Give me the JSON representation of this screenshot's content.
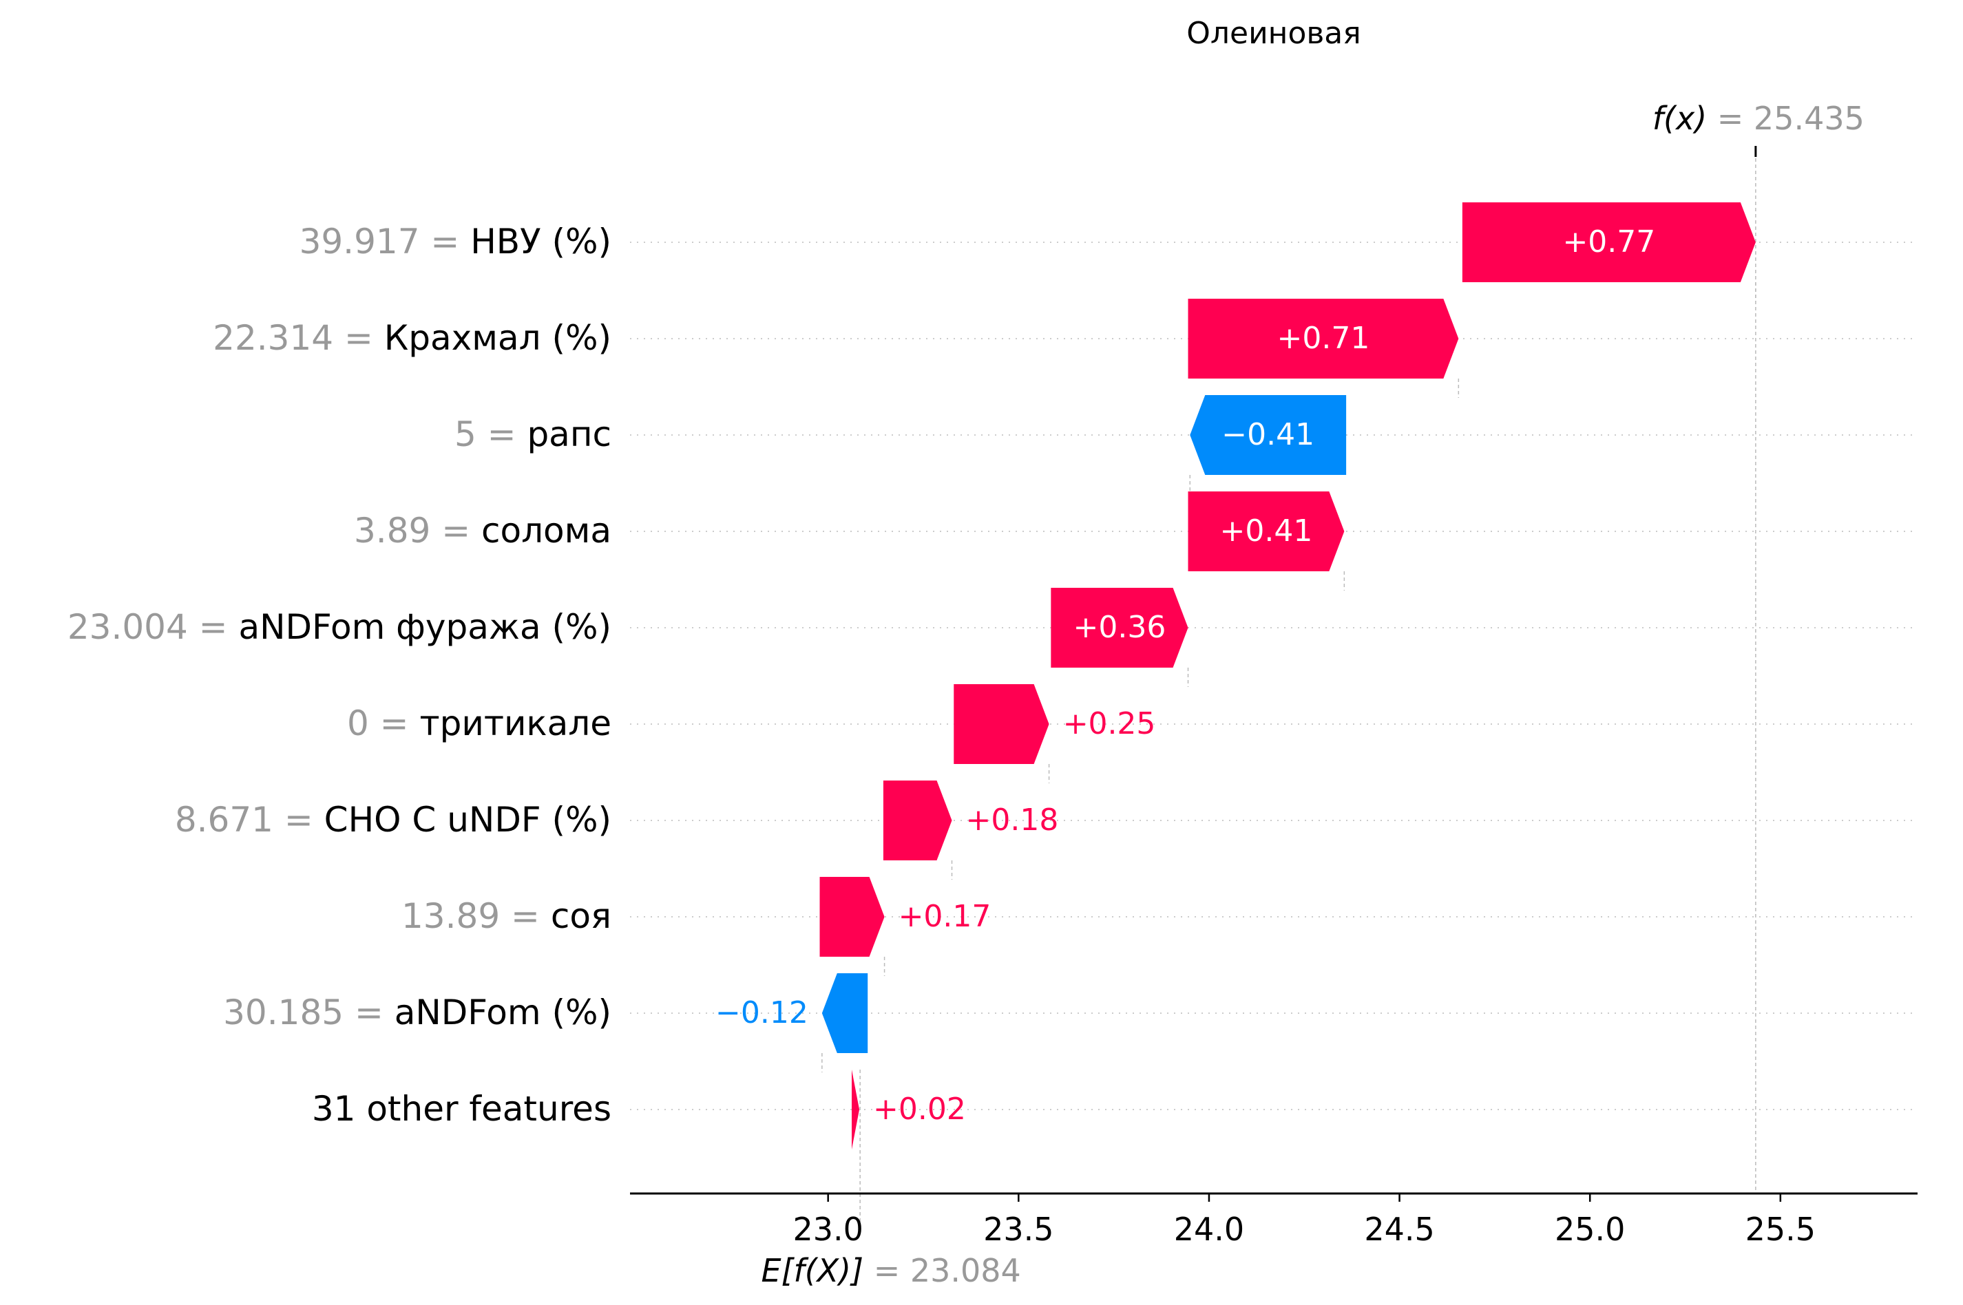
{
  "chart_data": {
    "type": "waterfall",
    "title": "Олеиновая",
    "base_value": 23.084,
    "base_label_prefix": "E[f(X)]",
    "base_value_text": "= 23.084",
    "output_value": 25.435,
    "output_label_prefix": "f(x)",
    "output_value_text": "= 25.435",
    "xlim": [
      22.48,
      25.86
    ],
    "xticks": [
      23.0,
      23.5,
      24.0,
      24.5,
      25.0,
      25.5
    ],
    "xtick_labels": [
      "23.0",
      "23.5",
      "24.0",
      "24.5",
      "25.0",
      "25.5"
    ],
    "colors": {
      "positive": "#ff0051",
      "negative": "#008bfb",
      "value_text": "#999999",
      "label_text": "#000000",
      "grid": "#cccccc"
    },
    "features": [
      {
        "value": "39.917 =",
        "name": "НВУ (%)",
        "start": 24.665,
        "shap": 0.77,
        "shap_label": "+0.77"
      },
      {
        "value": "22.314 =",
        "name": "Крахмал (%)",
        "start": 23.945,
        "shap": 0.71,
        "shap_label": "+0.71"
      },
      {
        "value": "5 =",
        "name": "рапс",
        "start": 24.36,
        "shap": -0.41,
        "shap_label": "−0.41"
      },
      {
        "value": "3.89 =",
        "name": "солома",
        "start": 23.945,
        "shap": 0.41,
        "shap_label": "+0.41"
      },
      {
        "value": "23.004 =",
        "name": "aNDFom фуража (%)",
        "start": 23.585,
        "shap": 0.36,
        "shap_label": "+0.36"
      },
      {
        "value": "0 =",
        "name": "тритикале",
        "start": 23.33,
        "shap": 0.25,
        "shap_label": "+0.25"
      },
      {
        "value": "8.671 =",
        "name": "CHO C uNDF (%)",
        "start": 23.145,
        "shap": 0.18,
        "shap_label": "+0.18"
      },
      {
        "value": "13.89 =",
        "name": "соя",
        "start": 22.978,
        "shap": 0.17,
        "shap_label": "+0.17"
      },
      {
        "value": "30.185 =",
        "name": "aNDFom (%)",
        "start": 23.104,
        "shap": -0.12,
        "shap_label": "−0.12"
      },
      {
        "value": "",
        "name": "31 other features",
        "start": 23.062,
        "shap": 0.02,
        "shap_label": "+0.02"
      }
    ]
  }
}
